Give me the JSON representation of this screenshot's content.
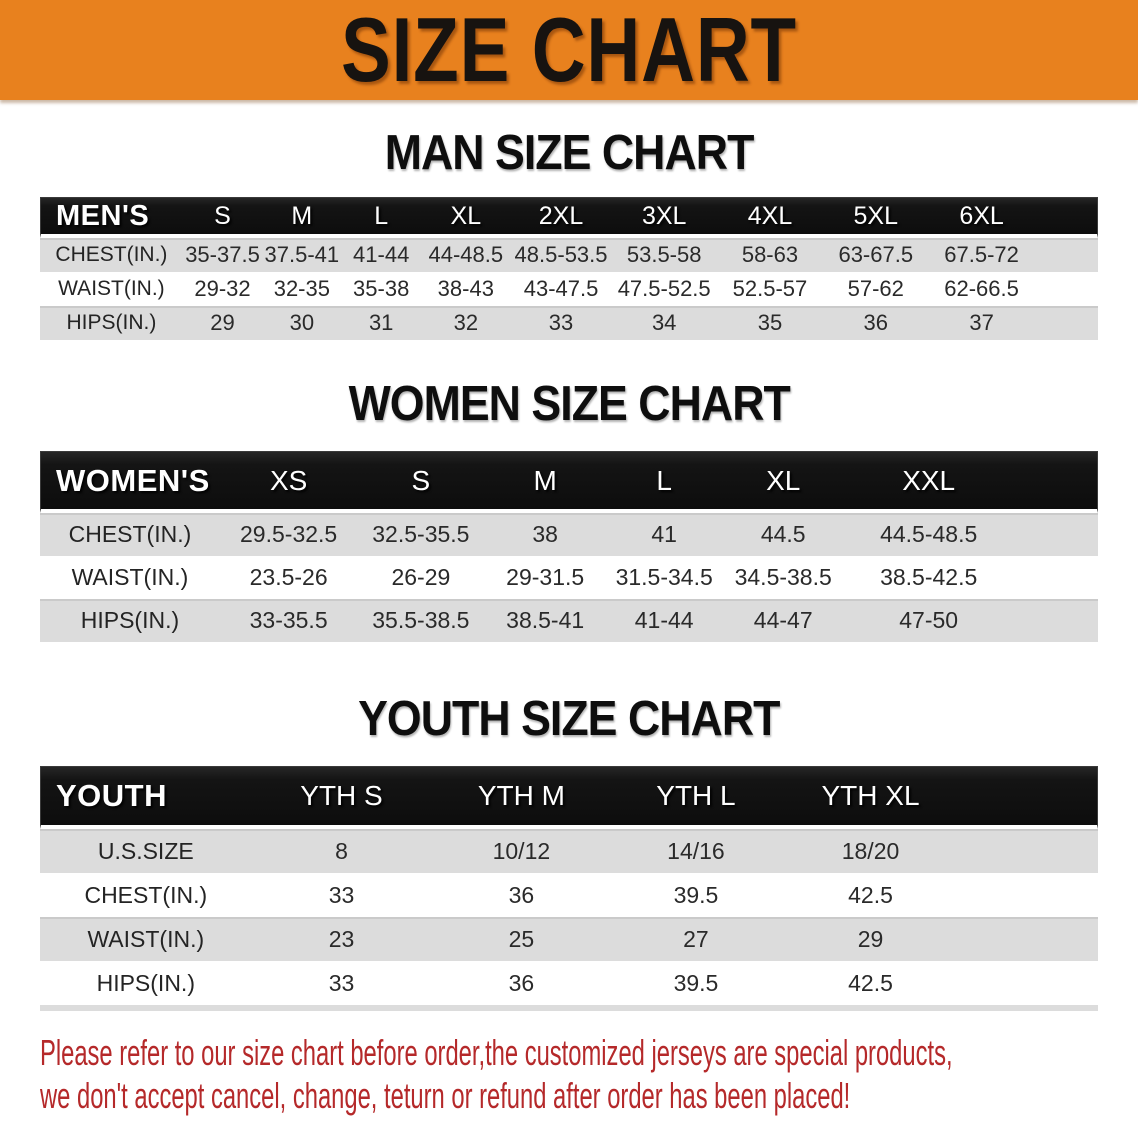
{
  "colors": {
    "accent-orange": "#E8811E",
    "band-black": "#151515",
    "stripe-gray": "#DCDCDC",
    "text-dark": "#2A2A2A",
    "disclaimer-red": "#B5292A"
  },
  "banner": {
    "title": "SIZE CHART"
  },
  "sections": {
    "men": {
      "heading": "MAN SIZE CHART",
      "table": {
        "header_label": "MEN'S",
        "columns": [
          "S",
          "M",
          "L",
          "XL",
          "2XL",
          "3XL",
          "4XL",
          "5XL",
          "6XL"
        ],
        "rows": [
          {
            "label": "CHEST(IN.)",
            "values": [
              "35-37.5",
              "37.5-41",
              "41-44",
              "44-48.5",
              "48.5-53.5",
              "53.5-58",
              "58-63",
              "63-67.5",
              "67.5-72"
            ]
          },
          {
            "label": "WAIST(IN.)",
            "values": [
              "29-32",
              "32-35",
              "35-38",
              "38-43",
              "43-47.5",
              "47.5-52.5",
              "52.5-57",
              "57-62",
              "62-66.5"
            ]
          },
          {
            "label": "HIPS(IN.)",
            "values": [
              "29",
              "30",
              "31",
              "32",
              "33",
              "34",
              "35",
              "36",
              "37"
            ]
          }
        ]
      }
    },
    "women": {
      "heading": "WOMEN SIZE CHART",
      "table": {
        "header_label": "WOMEN'S",
        "columns": [
          "XS",
          "S",
          "M",
          "L",
          "XL",
          "XXL"
        ],
        "rows": [
          {
            "label": "CHEST(IN.)",
            "values": [
              "29.5-32.5",
              "32.5-35.5",
              "38",
              "41",
              "44.5",
              "44.5-48.5"
            ]
          },
          {
            "label": "WAIST(IN.)",
            "values": [
              "23.5-26",
              "26-29",
              "29-31.5",
              "31.5-34.5",
              "34.5-38.5",
              "38.5-42.5"
            ]
          },
          {
            "label": "HIPS(IN.)",
            "values": [
              "33-35.5",
              "35.5-38.5",
              "38.5-41",
              "41-44",
              "44-47",
              "47-50"
            ]
          }
        ]
      }
    },
    "youth": {
      "heading": "YOUTH SIZE CHART",
      "table": {
        "header_label": "YOUTH",
        "columns": [
          "YTH S",
          "YTH M",
          "YTH L",
          "YTH XL"
        ],
        "rows": [
          {
            "label": "U.S.SIZE",
            "values": [
              "8",
              "10/12",
              "14/16",
              "18/20"
            ]
          },
          {
            "label": "CHEST(IN.)",
            "values": [
              "33",
              "36",
              "39.5",
              "42.5"
            ]
          },
          {
            "label": "WAIST(IN.)",
            "values": [
              "23",
              "25",
              "27",
              "29"
            ]
          },
          {
            "label": "HIPS(IN.)",
            "values": [
              "33",
              "36",
              "39.5",
              "42.5"
            ]
          }
        ]
      }
    }
  },
  "disclaimer": {
    "line1": "Please refer to our size chart before order,the customized jerseys are special products,",
    "line2": "we don't accept cancel, change, teturn or refund after order has been placed!"
  }
}
